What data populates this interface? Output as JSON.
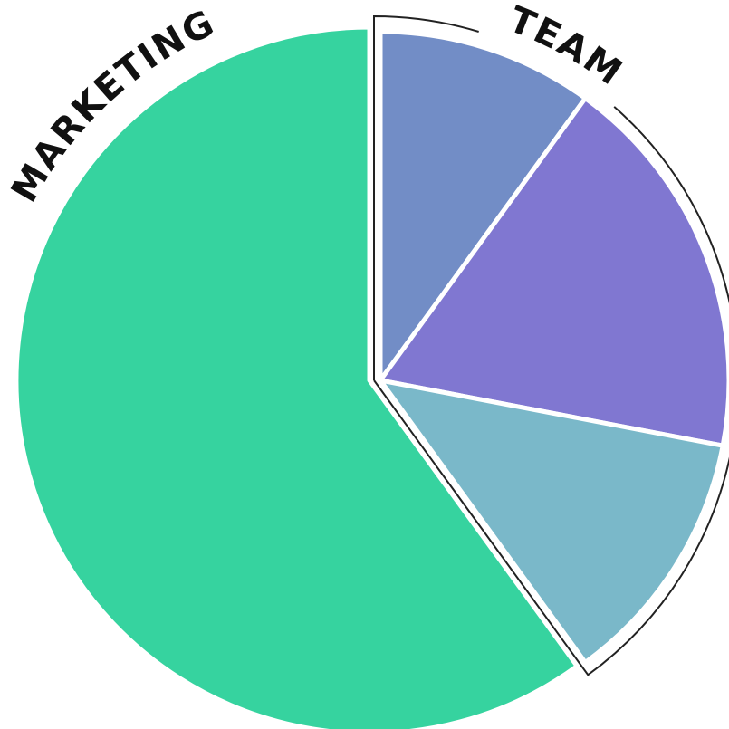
{
  "chart_data": {
    "type": "pie",
    "groups": [
      {
        "label": "TEAM",
        "values": [
          10,
          18,
          12
        ],
        "colors": [
          "#728dc6",
          "#8077d1",
          "#7ab8c9"
        ],
        "outlined": true
      },
      {
        "label": "MARKETING",
        "values": [
          60
        ],
        "colors": [
          "#36d39f"
        ],
        "outlined": false
      }
    ]
  }
}
